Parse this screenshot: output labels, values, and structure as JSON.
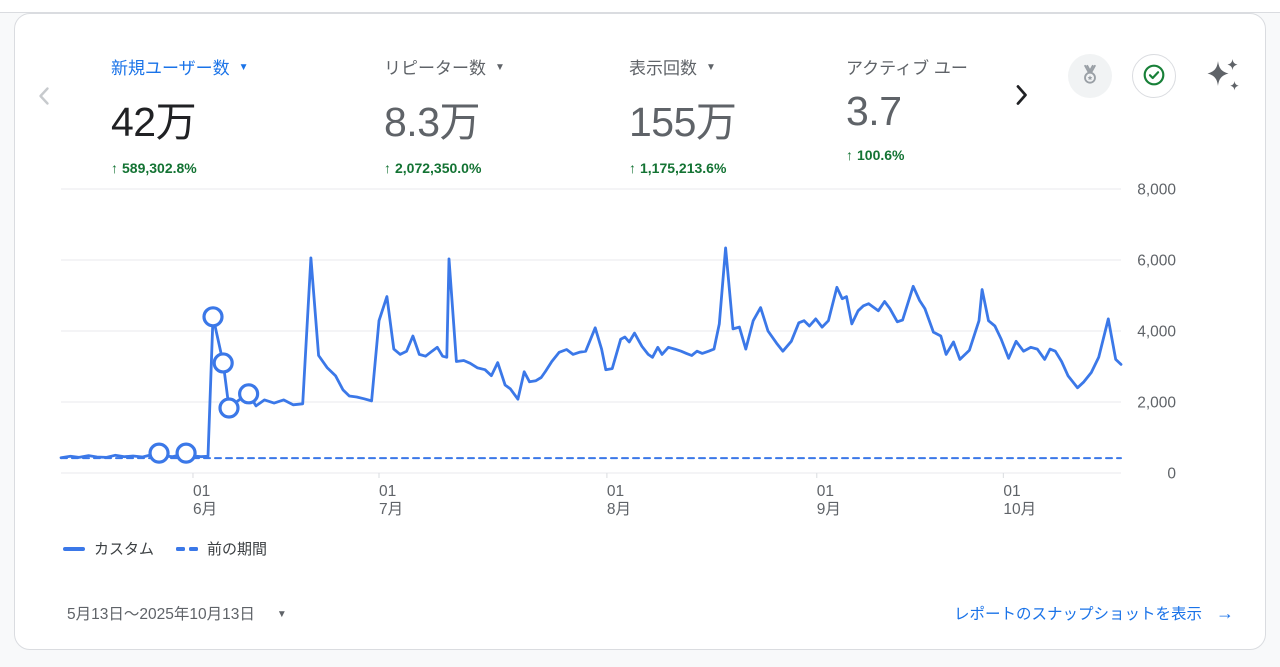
{
  "colors": {
    "accent_blue": "#1a73e8",
    "line_blue": "#3b78e8",
    "delta_green": "#137333",
    "text_dark": "#202124",
    "text_gray": "#5f6368",
    "grid": "#e8eaed",
    "border": "#dadce0",
    "medal_gray": "#9aa0a6",
    "check_green": "#188038"
  },
  "metrics": [
    {
      "label": "新規ユーザー数",
      "caret": "▼",
      "value": "42万",
      "delta_arrow": "↑",
      "delta": "589,302.8%",
      "selected": true
    },
    {
      "label": "リピーター数",
      "caret": "▼",
      "value": "8.3万",
      "delta_arrow": "↑",
      "delta": "2,072,350.0%",
      "selected": false
    },
    {
      "label": "表示回数",
      "caret": "▼",
      "value": "155万",
      "delta_arrow": "↑",
      "delta": "1,175,213.6%",
      "selected": false
    },
    {
      "label": "アクティブ ユー",
      "caret": "",
      "value": "3.7",
      "delta_arrow": "↑",
      "delta": "100.6%",
      "selected": false
    }
  ],
  "chart_data": {
    "type": "line",
    "title": "",
    "xlabel": "",
    "ylabel": "",
    "ylim": [
      0,
      8000
    ],
    "grid": "horizontal",
    "legend_position": "bottom-left",
    "yticks": [
      0,
      2000,
      4000,
      6000,
      8000
    ],
    "ytick_labels": [
      "0",
      "2,000",
      "4,000",
      "6,000",
      "8,000"
    ],
    "xticks": [
      {
        "f": 0.1245,
        "day": "01",
        "month": "6月"
      },
      {
        "f": 0.3,
        "day": "01",
        "month": "7月"
      },
      {
        "f": 0.515,
        "day": "01",
        "month": "8月"
      },
      {
        "f": 0.713,
        "day": "01",
        "month": "9月"
      },
      {
        "f": 0.889,
        "day": "01",
        "month": "10月"
      }
    ],
    "series": [
      {
        "name": "カスタム",
        "style": "solid",
        "color": "#3b78e8",
        "points": [
          [
            0.0,
            430
          ],
          [
            0.009,
            470
          ],
          [
            0.017,
            440
          ],
          [
            0.026,
            490
          ],
          [
            0.034,
            450
          ],
          [
            0.043,
            440
          ],
          [
            0.051,
            500
          ],
          [
            0.06,
            460
          ],
          [
            0.068,
            480
          ],
          [
            0.077,
            450
          ],
          [
            0.085,
            510
          ],
          [
            0.0925,
            560
          ],
          [
            0.098,
            480
          ],
          [
            0.105,
            460
          ],
          [
            0.111,
            500
          ],
          [
            0.118,
            560
          ],
          [
            0.125,
            480
          ],
          [
            0.132,
            460
          ],
          [
            0.1387,
            470
          ],
          [
            0.1434,
            4400
          ],
          [
            0.153,
            3100
          ],
          [
            0.1585,
            1830
          ],
          [
            0.168,
            2060
          ],
          [
            0.177,
            2230
          ],
          [
            0.184,
            1890
          ],
          [
            0.192,
            2060
          ],
          [
            0.201,
            1970
          ],
          [
            0.21,
            2060
          ],
          [
            0.219,
            1920
          ],
          [
            0.228,
            1950
          ],
          [
            0.2358,
            6060
          ],
          [
            0.243,
            3310
          ],
          [
            0.251,
            2970
          ],
          [
            0.259,
            2740
          ],
          [
            0.266,
            2340
          ],
          [
            0.272,
            2170
          ],
          [
            0.279,
            2140
          ],
          [
            0.286,
            2090
          ],
          [
            0.293,
            2030
          ],
          [
            0.3,
            4290
          ],
          [
            0.3075,
            4970
          ],
          [
            0.314,
            3490
          ],
          [
            0.32,
            3340
          ],
          [
            0.326,
            3430
          ],
          [
            0.332,
            3860
          ],
          [
            0.338,
            3340
          ],
          [
            0.344,
            3290
          ],
          [
            0.35,
            3430
          ],
          [
            0.355,
            3540
          ],
          [
            0.36,
            3290
          ],
          [
            0.364,
            3260
          ],
          [
            0.366,
            6030
          ],
          [
            0.373,
            3140
          ],
          [
            0.38,
            3170
          ],
          [
            0.386,
            3090
          ],
          [
            0.393,
            2960
          ],
          [
            0.4,
            2910
          ],
          [
            0.406,
            2740
          ],
          [
            0.412,
            3110
          ],
          [
            0.419,
            2480
          ],
          [
            0.424,
            2370
          ],
          [
            0.431,
            2080
          ],
          [
            0.437,
            2850
          ],
          [
            0.442,
            2570
          ],
          [
            0.448,
            2600
          ],
          [
            0.453,
            2690
          ],
          [
            0.457,
            2860
          ],
          [
            0.463,
            3140
          ],
          [
            0.47,
            3400
          ],
          [
            0.477,
            3480
          ],
          [
            0.483,
            3340
          ],
          [
            0.489,
            3400
          ],
          [
            0.495,
            3430
          ],
          [
            0.5,
            3800
          ],
          [
            0.504,
            4090
          ],
          [
            0.51,
            3490
          ],
          [
            0.514,
            2910
          ],
          [
            0.52,
            2940
          ],
          [
            0.528,
            3770
          ],
          [
            0.532,
            3830
          ],
          [
            0.536,
            3690
          ],
          [
            0.541,
            3940
          ],
          [
            0.548,
            3570
          ],
          [
            0.554,
            3340
          ],
          [
            0.558,
            3260
          ],
          [
            0.563,
            3540
          ],
          [
            0.567,
            3340
          ],
          [
            0.573,
            3540
          ],
          [
            0.579,
            3490
          ],
          [
            0.585,
            3430
          ],
          [
            0.59,
            3370
          ],
          [
            0.595,
            3310
          ],
          [
            0.6,
            3430
          ],
          [
            0.605,
            3370
          ],
          [
            0.611,
            3430
          ],
          [
            0.616,
            3490
          ],
          [
            0.621,
            4200
          ],
          [
            0.627,
            6340
          ],
          [
            0.634,
            4060
          ],
          [
            0.64,
            4110
          ],
          [
            0.646,
            3490
          ],
          [
            0.653,
            4290
          ],
          [
            0.66,
            4660
          ],
          [
            0.667,
            4000
          ],
          [
            0.675,
            3660
          ],
          [
            0.681,
            3430
          ],
          [
            0.689,
            3710
          ],
          [
            0.696,
            4230
          ],
          [
            0.701,
            4290
          ],
          [
            0.706,
            4140
          ],
          [
            0.712,
            4340
          ],
          [
            0.718,
            4110
          ],
          [
            0.724,
            4290
          ],
          [
            0.732,
            5230
          ],
          [
            0.737,
            4910
          ],
          [
            0.741,
            4970
          ],
          [
            0.746,
            4200
          ],
          [
            0.752,
            4570
          ],
          [
            0.757,
            4710
          ],
          [
            0.762,
            4770
          ],
          [
            0.771,
            4570
          ],
          [
            0.777,
            4830
          ],
          [
            0.782,
            4630
          ],
          [
            0.789,
            4260
          ],
          [
            0.794,
            4310
          ],
          [
            0.804,
            5260
          ],
          [
            0.81,
            4860
          ],
          [
            0.815,
            4630
          ],
          [
            0.823,
            3970
          ],
          [
            0.83,
            3860
          ],
          [
            0.835,
            3340
          ],
          [
            0.842,
            3690
          ],
          [
            0.848,
            3200
          ],
          [
            0.857,
            3460
          ],
          [
            0.866,
            4290
          ],
          [
            0.869,
            5170
          ],
          [
            0.875,
            4290
          ],
          [
            0.881,
            4140
          ],
          [
            0.887,
            3770
          ],
          [
            0.894,
            3230
          ],
          [
            0.901,
            3710
          ],
          [
            0.908,
            3430
          ],
          [
            0.915,
            3540
          ],
          [
            0.921,
            3490
          ],
          [
            0.928,
            3200
          ],
          [
            0.933,
            3490
          ],
          [
            0.938,
            3430
          ],
          [
            0.944,
            3140
          ],
          [
            0.95,
            2740
          ],
          [
            0.959,
            2400
          ],
          [
            0.965,
            2570
          ],
          [
            0.972,
            2830
          ],
          [
            0.979,
            3260
          ],
          [
            0.988,
            4340
          ],
          [
            0.995,
            3200
          ],
          [
            1.0,
            3060
          ]
        ]
      },
      {
        "name": "前の期間",
        "style": "dashed",
        "color": "#3b78e8",
        "points": [
          [
            0.0,
            420
          ],
          [
            1.0,
            420
          ]
        ]
      }
    ],
    "markers": [
      {
        "f": 0.0925,
        "value": 560
      },
      {
        "f": 0.118,
        "value": 560
      },
      {
        "f": 0.1434,
        "value": 4400
      },
      {
        "f": 0.153,
        "value": 3100
      },
      {
        "f": 0.1585,
        "value": 1830
      },
      {
        "f": 0.177,
        "value": 2230
      }
    ]
  },
  "legend": [
    {
      "label": "カスタム",
      "style": "solid"
    },
    {
      "label": "前の期間",
      "style": "dashed"
    }
  ],
  "footer": {
    "date_range": "5月13日～2025年10月13日",
    "caret": "▼",
    "link": "レポートのスナップショットを表示",
    "link_arrow": "→"
  }
}
